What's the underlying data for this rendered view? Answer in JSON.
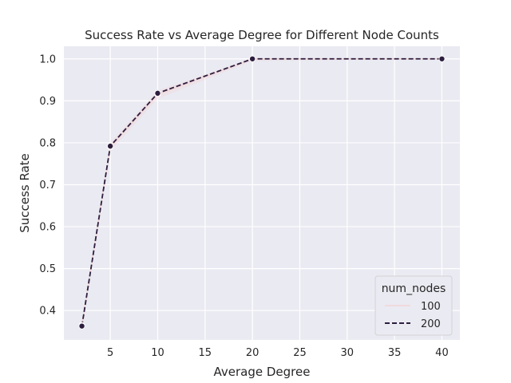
{
  "chart_data": {
    "type": "line",
    "title": "Success Rate vs Average Degree for Different Node Counts",
    "xlabel": "Average Degree",
    "ylabel": "Success Rate",
    "xlim": [
      0.1,
      41.9
    ],
    "ylim": [
      0.33,
      1.03
    ],
    "xticks": [
      5,
      10,
      15,
      20,
      25,
      30,
      35,
      40
    ],
    "yticks": [
      0.4,
      0.5,
      0.6,
      0.7,
      0.8,
      0.9,
      1.0
    ],
    "ytick_labels": [
      "0.4",
      "0.5",
      "0.6",
      "0.7",
      "0.8",
      "0.9",
      "1.0"
    ],
    "grid": true,
    "legend": {
      "title": "num_nodes",
      "placement": "lower-right"
    },
    "series": [
      {
        "name": "100",
        "style": "solid",
        "color": "#f2d4d6",
        "x": [
          2,
          5,
          10,
          20,
          40
        ],
        "y": [
          0.365,
          0.79,
          0.915,
          1.0,
          1.0
        ],
        "band_low": [
          0.36,
          0.78,
          0.905,
          0.995,
          1.0
        ],
        "band_high": [
          0.37,
          0.8,
          0.925,
          1.0,
          1.0
        ]
      },
      {
        "name": "200",
        "style": "dashed",
        "color": "#2d1e3e",
        "x": [
          2,
          5,
          10,
          20,
          40
        ],
        "y": [
          0.363,
          0.792,
          0.918,
          1.0,
          1.0
        ]
      }
    ]
  }
}
